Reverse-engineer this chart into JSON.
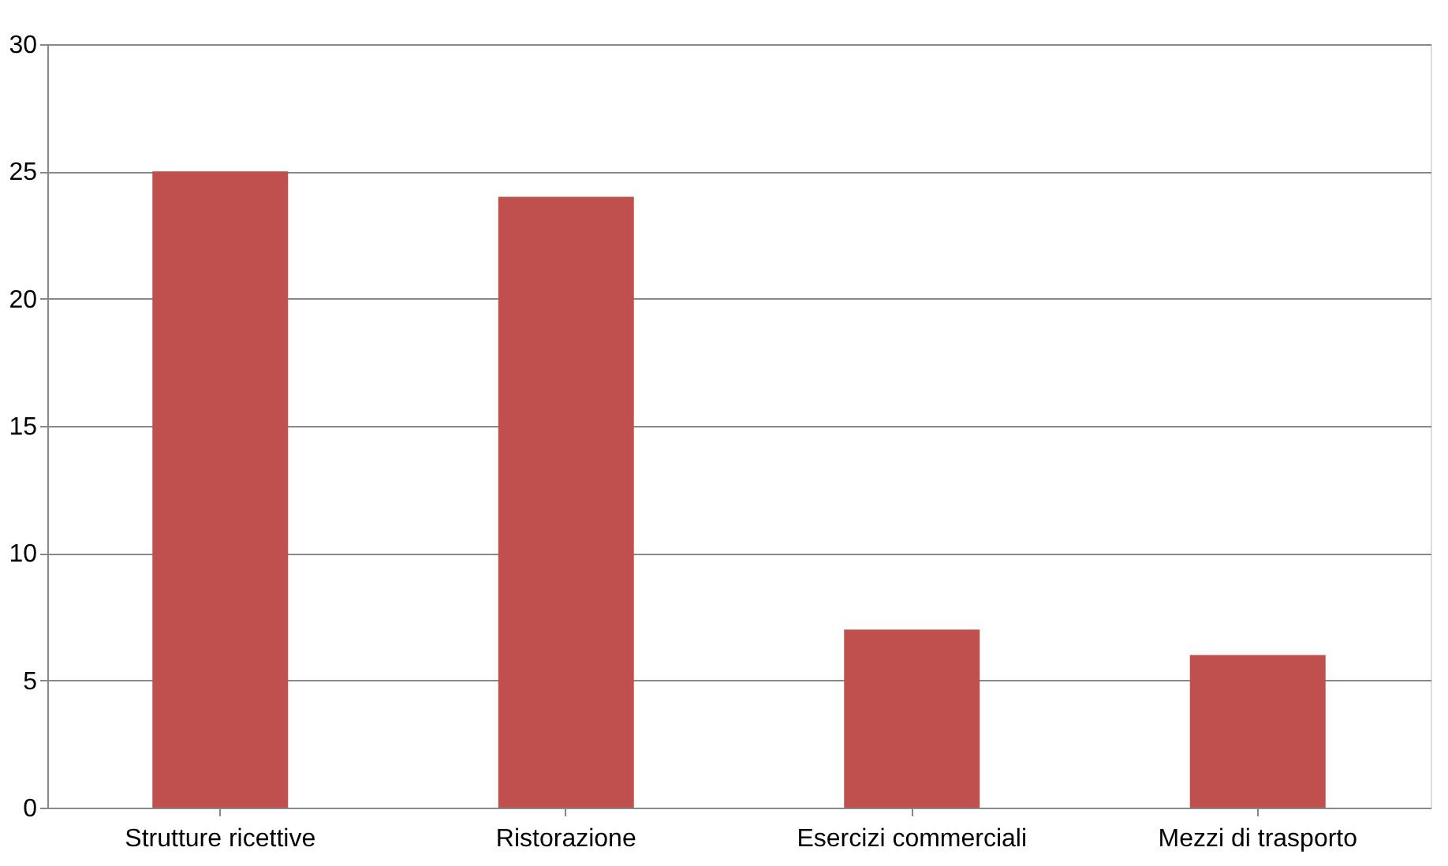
{
  "chart_data": {
    "type": "bar",
    "categories": [
      "Strutture ricettive",
      "Ristorazione",
      "Esercizi commerciali",
      "Mezzi di trasporto"
    ],
    "values": [
      25,
      24,
      7,
      6
    ],
    "color": "#c0504d",
    "ylim": [
      0,
      30
    ],
    "yticks": [
      0,
      5,
      10,
      15,
      20,
      25,
      30
    ],
    "grid": "y"
  }
}
